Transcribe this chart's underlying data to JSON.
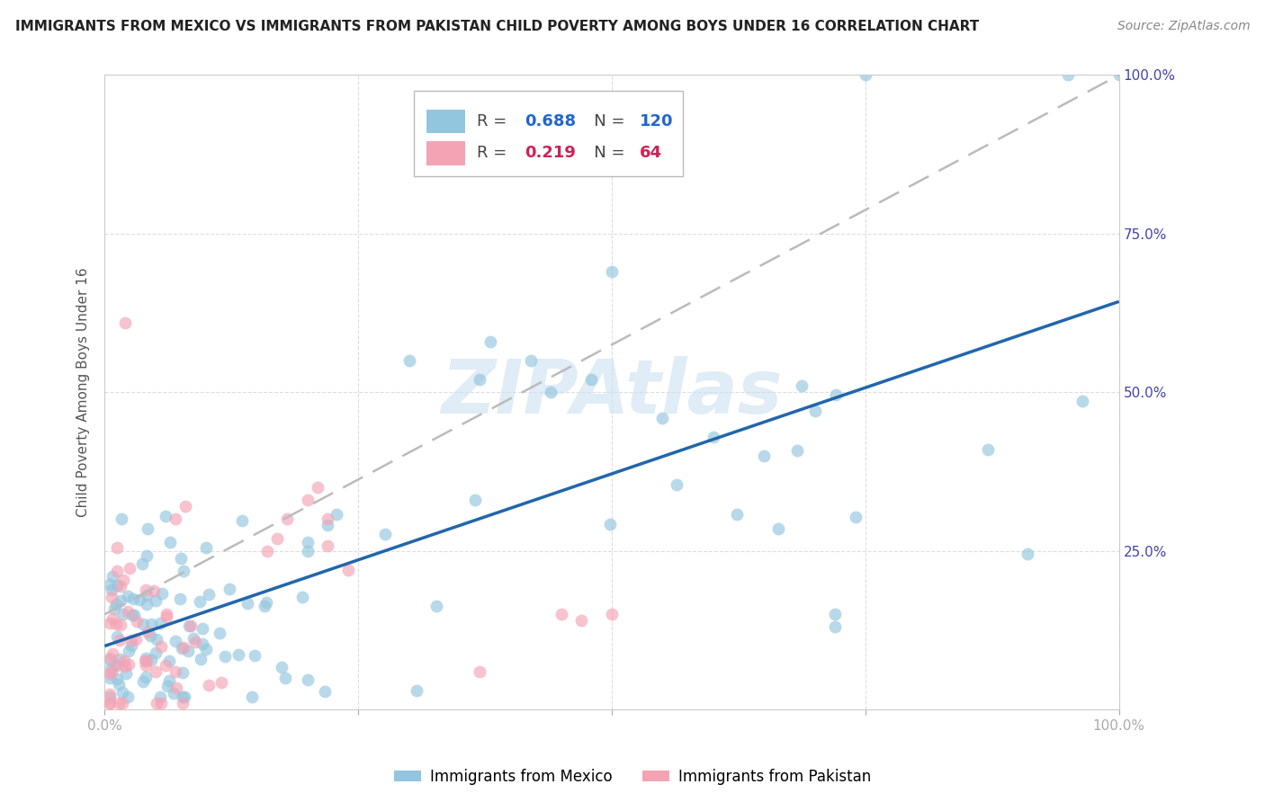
{
  "title": "IMMIGRANTS FROM MEXICO VS IMMIGRANTS FROM PAKISTAN CHILD POVERTY AMONG BOYS UNDER 16 CORRELATION CHART",
  "source": "Source: ZipAtlas.com",
  "ylabel": "Child Poverty Among Boys Under 16",
  "xlim": [
    0,
    1.0
  ],
  "ylim": [
    0,
    1.0
  ],
  "watermark": "ZIPAtlas",
  "mexico_color": "#92c5de",
  "pakistan_color": "#f4a3b5",
  "mexico_line_color": "#2166ac",
  "pakistan_line_color": "#bbbbbb",
  "R_mexico": 0.688,
  "N_mexico": 120,
  "R_pakistan": 0.219,
  "N_pakistan": 64,
  "title_fontsize": 11,
  "source_fontsize": 10,
  "tick_label_color": "#4444aa",
  "ylabel_color": "#555555",
  "grid_color": "#dddddd",
  "scatter_size": 100,
  "scatter_alpha": 0.65
}
